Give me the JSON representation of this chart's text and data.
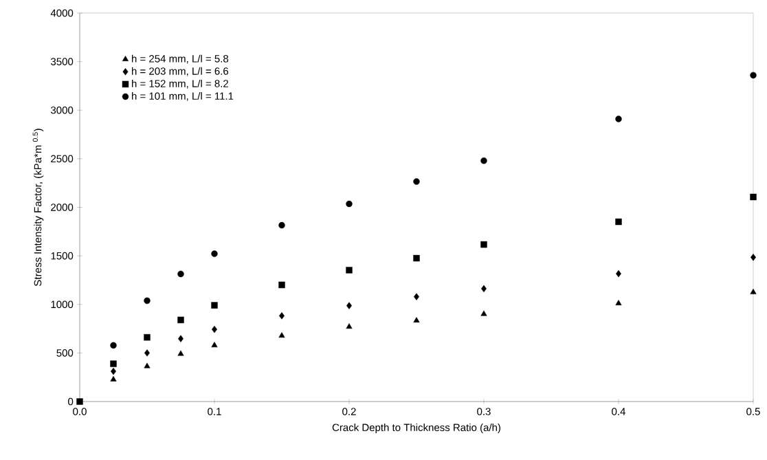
{
  "chart_data": {
    "type": "scatter",
    "xlabel": "Crack Depth to Thickness Ratio (a/h)",
    "ylabel": "Stress Intensity Factor,  (kPa*m $^{0.5}$)",
    "x": [
      0,
      0.025,
      0.05,
      0.075,
      0.1,
      0.15,
      0.2,
      0.25,
      0.3,
      0.4,
      0.5
    ],
    "series": [
      {
        "name": "h = 254 mm, L/l = 5.8",
        "color": "#000000",
        "marker": "triangle",
        "values": [
          null,
          227,
          363,
          491,
          578,
          677,
          769,
          833,
          901,
          1011,
          1125
        ]
      },
      {
        "name": "h = 203 mm, L/l = 6.6",
        "color": "#000000",
        "marker": "diamond",
        "values": [
          null,
          311,
          500,
          647,
          743,
          883,
          987,
          1079,
          1162,
          1316,
          1485
        ]
      },
      {
        "name": "h = 152 mm, L/l = 8.2",
        "color": "#000000",
        "marker": "square",
        "values": [
          0,
          389,
          661,
          840,
          991,
          1201,
          1353,
          1476,
          1617,
          1851,
          2106
        ]
      },
      {
        "name": "h = 101 mm, L/l = 11.1",
        "color": "#000000",
        "marker": "circle",
        "values": [
          null,
          578,
          1038,
          1314,
          1522,
          1815,
          2035,
          2265,
          2480,
          2910,
          3360
        ]
      }
    ],
    "xlim": [
      0,
      0.5
    ],
    "ylim": [
      0,
      4000
    ],
    "xticks": [
      {
        "value": 0,
        "label": "0.0"
      },
      {
        "value": 0.1,
        "label": "0.1"
      },
      {
        "value": 0.2,
        "label": "0.2"
      },
      {
        "value": 0.3,
        "label": "0.3"
      },
      {
        "value": 0.4,
        "label": "0.4"
      },
      {
        "value": 0.5,
        "label": "0.5"
      }
    ],
    "yticks": [
      0,
      500,
      1000,
      1500,
      2000,
      2500,
      3000,
      3500,
      4000
    ],
    "grid": false,
    "legend": "top left"
  }
}
